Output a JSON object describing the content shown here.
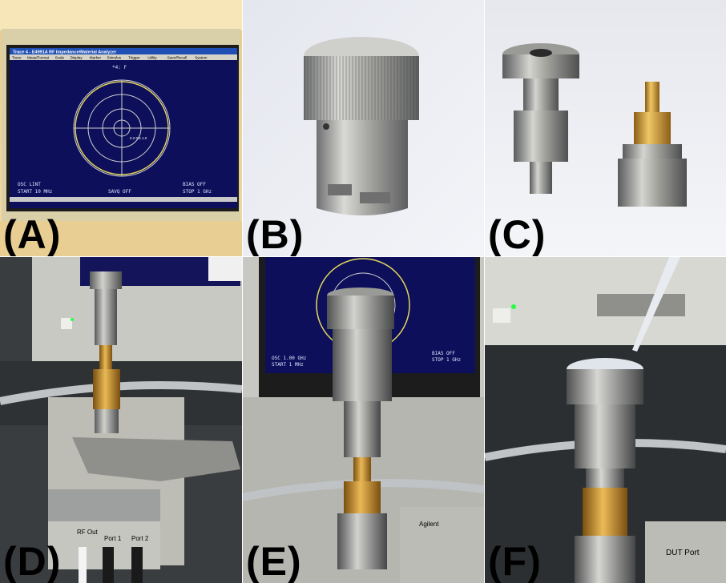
{
  "panels": [
    {
      "label": "(A)"
    },
    {
      "label": "(B)"
    },
    {
      "label": "(C)"
    },
    {
      "label": "(D)"
    },
    {
      "label": "(E)"
    },
    {
      "label": "(F)"
    }
  ],
  "analyzer_screen": {
    "title": "Trace 4 - E4991A RF Impedance/Material Analyzer",
    "menu": [
      "Trace",
      "Meas/Format",
      "Scale",
      "Display",
      "Marker",
      "Stimulus",
      "Trigger",
      "Utility",
      "Save/Recall",
      "System"
    ],
    "header": "*4: F",
    "osc": "OSC LINT",
    "start": "START  10 MHz",
    "bias": "BIAS OFF",
    "stop": "STOP  1 GHz",
    "savq": "SAVQ OFF"
  },
  "screen_e": {
    "osc": "OSC 1.00 GHz",
    "start": "START  1 MHz",
    "bias": "BIAS OFF",
    "stop": "STOP  1 GHz"
  },
  "fixture": {
    "rf_out": "RF Out",
    "port1": "Port 1",
    "port2": "Port 2",
    "brand": "Agilent",
    "dut_port": "DUT Port"
  },
  "colors": {
    "screen_bg": "#0d0f5a",
    "gold": "#c99a33",
    "steel": "#b5b5b0"
  }
}
